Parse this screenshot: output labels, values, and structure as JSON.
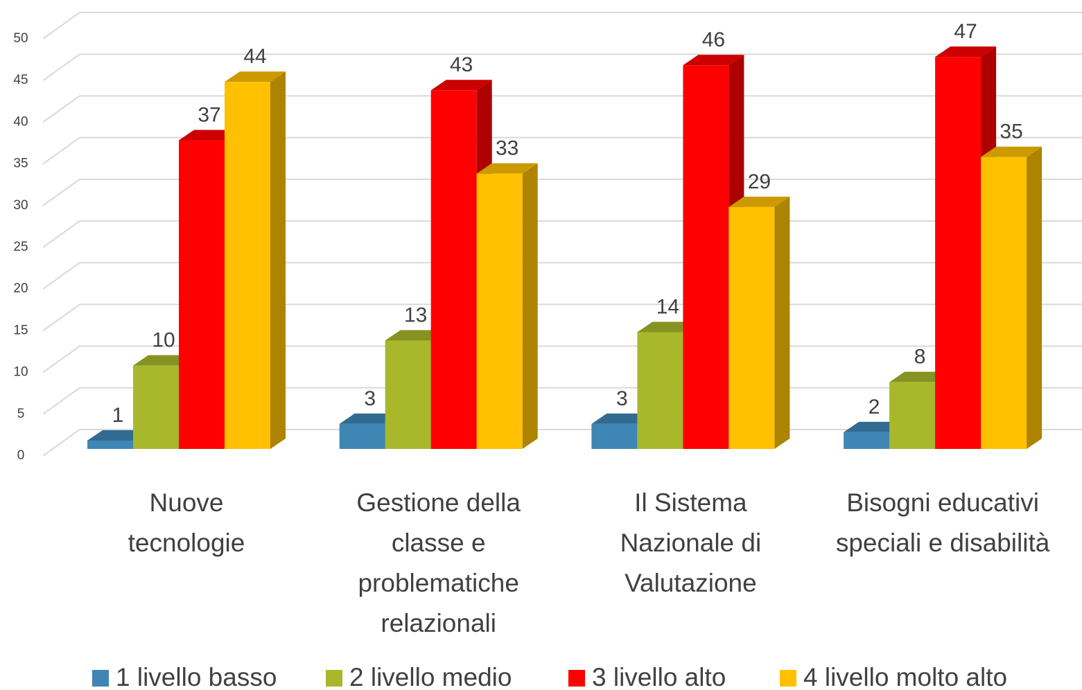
{
  "chart_data": {
    "type": "bar3d",
    "categories": [
      "Nuove tecnologie",
      "Gestione della classe e problematiche relazionali",
      "Il Sistema Nazionale di Valutazione",
      "Bisogni educativi speciali e disabilità"
    ],
    "series": [
      {
        "name": "1 livello basso",
        "color": "#3f86b5",
        "values": [
          1,
          3,
          3,
          2
        ]
      },
      {
        "name": "2 livello medio",
        "color": "#a8b82a",
        "values": [
          10,
          13,
          14,
          8
        ]
      },
      {
        "name": "3 livello alto",
        "color": "#ff0000",
        "values": [
          37,
          43,
          46,
          47
        ]
      },
      {
        "name": "4 livello molto alto",
        "color": "#ffc000",
        "values": [
          44,
          33,
          29,
          35
        ]
      }
    ],
    "ylim": [
      0,
      50
    ],
    "yticks": [
      0,
      5,
      10,
      15,
      20,
      25,
      30,
      35,
      40,
      45,
      50
    ],
    "grid": true,
    "legend": "bottom"
  }
}
